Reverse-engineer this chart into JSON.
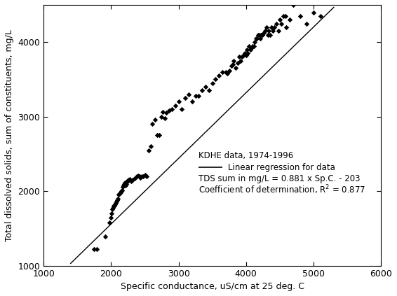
{
  "scatter_points": [
    [
      1750,
      1220
    ],
    [
      1790,
      1220
    ],
    [
      1910,
      1390
    ],
    [
      1980,
      1580
    ],
    [
      2000,
      1640
    ],
    [
      2010,
      1700
    ],
    [
      2020,
      1760
    ],
    [
      2030,
      1780
    ],
    [
      2040,
      1800
    ],
    [
      2050,
      1800
    ],
    [
      2060,
      1820
    ],
    [
      2070,
      1840
    ],
    [
      2080,
      1860
    ],
    [
      2090,
      1880
    ],
    [
      2100,
      1900
    ],
    [
      2110,
      1950
    ],
    [
      2120,
      1960
    ],
    [
      2130,
      1970
    ],
    [
      2140,
      1980
    ],
    [
      2150,
      2000
    ],
    [
      2160,
      2010
    ],
    [
      2170,
      2060
    ],
    [
      2180,
      2080
    ],
    [
      2190,
      2100
    ],
    [
      2200,
      2110
    ],
    [
      2210,
      2080
    ],
    [
      2220,
      2100
    ],
    [
      2230,
      2120
    ],
    [
      2240,
      2130
    ],
    [
      2260,
      2150
    ],
    [
      2280,
      2160
    ],
    [
      2300,
      2130
    ],
    [
      2320,
      2150
    ],
    [
      2350,
      2170
    ],
    [
      2380,
      2200
    ],
    [
      2400,
      2210
    ],
    [
      2420,
      2200
    ],
    [
      2430,
      2180
    ],
    [
      2450,
      2200
    ],
    [
      2470,
      2200
    ],
    [
      2500,
      2220
    ],
    [
      2530,
      2200
    ],
    [
      2560,
      2550
    ],
    [
      2590,
      2600
    ],
    [
      2610,
      2900
    ],
    [
      2650,
      2960
    ],
    [
      2680,
      2750
    ],
    [
      2710,
      2750
    ],
    [
      2740,
      3000
    ],
    [
      2760,
      3060
    ],
    [
      2800,
      2980
    ],
    [
      2820,
      3050
    ],
    [
      2860,
      3080
    ],
    [
      2900,
      3100
    ],
    [
      2950,
      3150
    ],
    [
      3000,
      3200
    ],
    [
      3050,
      3100
    ],
    [
      3100,
      3250
    ],
    [
      3150,
      3300
    ],
    [
      3200,
      3200
    ],
    [
      3250,
      3280
    ],
    [
      3300,
      3280
    ],
    [
      3350,
      3350
    ],
    [
      3400,
      3400
    ],
    [
      3450,
      3350
    ],
    [
      3500,
      3450
    ],
    [
      3550,
      3500
    ],
    [
      3600,
      3550
    ],
    [
      3650,
      3600
    ],
    [
      3700,
      3600
    ],
    [
      3720,
      3580
    ],
    [
      3750,
      3620
    ],
    [
      3780,
      3680
    ],
    [
      3800,
      3700
    ],
    [
      3820,
      3750
    ],
    [
      3850,
      3650
    ],
    [
      3880,
      3720
    ],
    [
      3900,
      3800
    ],
    [
      3920,
      3750
    ],
    [
      3940,
      3800
    ],
    [
      3960,
      3820
    ],
    [
      3980,
      3850
    ],
    [
      4000,
      3820
    ],
    [
      4010,
      3900
    ],
    [
      4020,
      3850
    ],
    [
      4040,
      3950
    ],
    [
      4060,
      3900
    ],
    [
      4080,
      3920
    ],
    [
      4100,
      3950
    ],
    [
      4120,
      3950
    ],
    [
      4130,
      4000
    ],
    [
      4150,
      4050
    ],
    [
      4160,
      4050
    ],
    [
      4180,
      4100
    ],
    [
      4200,
      4100
    ],
    [
      4210,
      4050
    ],
    [
      4220,
      4100
    ],
    [
      4240,
      4100
    ],
    [
      4260,
      4120
    ],
    [
      4280,
      4150
    ],
    [
      4300,
      4200
    ],
    [
      4320,
      4100
    ],
    [
      4340,
      4150
    ],
    [
      4360,
      4100
    ],
    [
      4380,
      4200
    ],
    [
      4400,
      4150
    ],
    [
      4420,
      4200
    ],
    [
      4450,
      4250
    ],
    [
      4480,
      4150
    ],
    [
      4500,
      4300
    ],
    [
      4520,
      4250
    ],
    [
      4550,
      4350
    ],
    [
      4580,
      4350
    ],
    [
      4600,
      4200
    ],
    [
      4650,
      4300
    ],
    [
      4700,
      4500
    ],
    [
      4800,
      4350
    ],
    [
      4900,
      4250
    ],
    [
      5000,
      4400
    ],
    [
      5100,
      4350
    ]
  ],
  "regression_slope": 0.881,
  "regression_intercept": -203,
  "xlim": [
    1000,
    6000
  ],
  "ylim": [
    1000,
    4500
  ],
  "xticks": [
    1000,
    2000,
    3000,
    4000,
    5000,
    6000
  ],
  "yticks": [
    1000,
    2000,
    3000,
    4000
  ],
  "xlabel": "Specific conductance, uS/cm at 25 deg. C",
  "ylabel": "Total dissolved solids, sum of constituents, mg/L",
  "scatter_color": "#000000",
  "line_color": "#000000",
  "bg_color": "#ffffff",
  "marker_size": 14,
  "ann_x": 3300,
  "ann_y1": 2480,
  "ann_y2": 2320,
  "ann_y3": 2170,
  "ann_y4": 2020
}
